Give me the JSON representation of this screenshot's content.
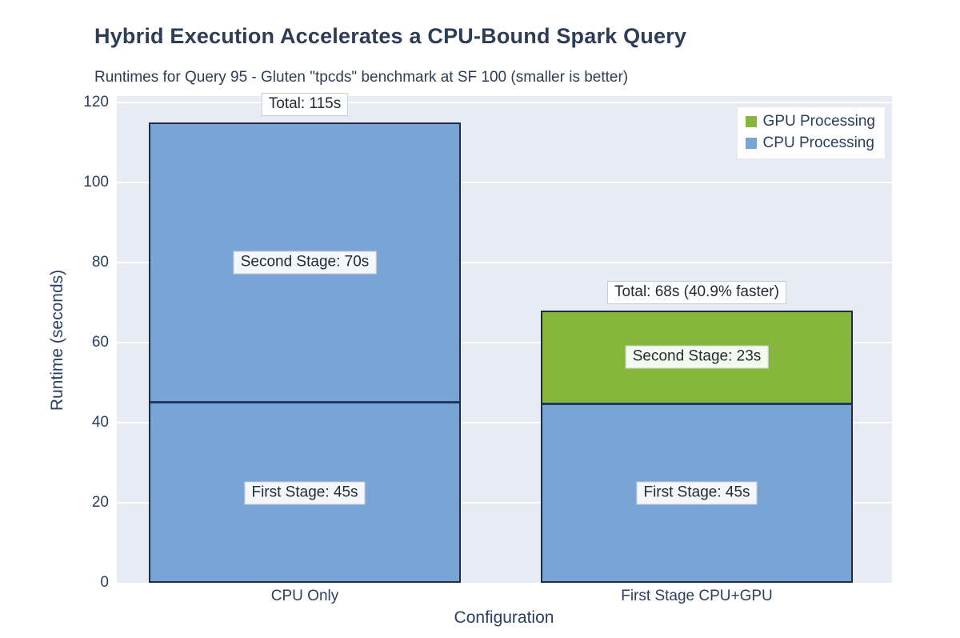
{
  "title": "Hybrid Execution Accelerates a CPU-Bound Spark Query",
  "subtitle": "Runtimes for Query 95 - Gluten \"tpcds\" benchmark at SF 100 (smaller is better)",
  "colors": {
    "cpu": "#79A4D6",
    "gpu": "#86B73C",
    "bar_border": "#202C40",
    "segment_separator": "#1E3A5F",
    "plot_bg": "#E7EBF4",
    "gridline": "#FFFFFF",
    "text": "#2A3F5F",
    "annotation_bg": "#FFFFFF",
    "annotation_border": "#C7CCD6"
  },
  "chart_data": {
    "type": "bar",
    "stacked": true,
    "title": "Hybrid Execution Accelerates a CPU-Bound Spark Query",
    "subtitle": "Runtimes for Query 95 - Gluten \"tpcds\" benchmark at SF 100 (smaller is better)",
    "xlabel": "Configuration",
    "ylabel": "Runtime (seconds)",
    "ylim": [
      0,
      120
    ],
    "ytick_step": 20,
    "yticks": [
      0,
      20,
      40,
      60,
      80,
      100,
      120
    ],
    "grid": true,
    "legend": {
      "position": "top-right",
      "entries": [
        {
          "label": "GPU Processing",
          "color_key": "gpu"
        },
        {
          "label": "CPU Processing",
          "color_key": "cpu"
        }
      ]
    },
    "categories": [
      "CPU Only",
      "First Stage CPU+GPU"
    ],
    "bars": [
      {
        "category": "CPU Only",
        "total": 115,
        "total_label": "Total: 115s",
        "segments": [
          {
            "name": "First Stage",
            "value": 45,
            "color_key": "cpu",
            "label": "First Stage: 45s"
          },
          {
            "name": "Second Stage",
            "value": 70,
            "color_key": "cpu",
            "label": "Second Stage: 70s"
          }
        ]
      },
      {
        "category": "First Stage CPU+GPU",
        "total": 68,
        "total_label": "Total: 68s (40.9% faster)",
        "segments": [
          {
            "name": "First Stage",
            "value": 45,
            "color_key": "cpu",
            "label": "First Stage: 45s"
          },
          {
            "name": "Second Stage",
            "value": 23,
            "color_key": "gpu",
            "label": "Second Stage: 23s"
          }
        ]
      }
    ]
  }
}
